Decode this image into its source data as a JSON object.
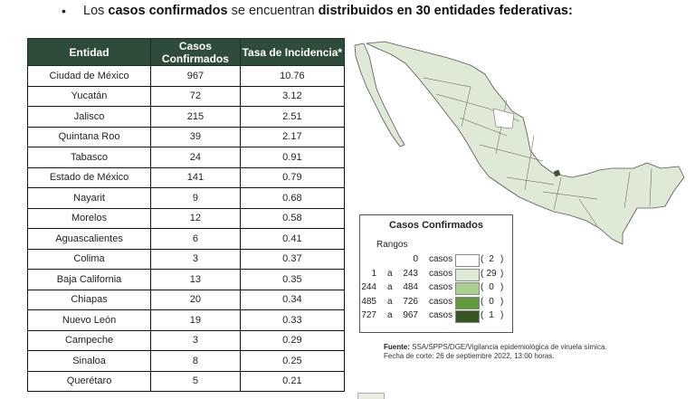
{
  "headline": {
    "bullet": "•",
    "p1": "Los ",
    "b1": "casos confirmados",
    "p2": " se encuentran ",
    "b2": "distribuidos en 30 entidades federativas:"
  },
  "table": {
    "headers": [
      "Entidad",
      "Casos Confirmados",
      "Tasa de Incidencia*"
    ],
    "rows": [
      {
        "entidad": "Ciudad de México",
        "casos": "967",
        "tasa": "10.76"
      },
      {
        "entidad": "Yucatán",
        "casos": "72",
        "tasa": "3.12"
      },
      {
        "entidad": "Jalisco",
        "casos": "215",
        "tasa": "2.51"
      },
      {
        "entidad": "Quintana Roo",
        "casos": "39",
        "tasa": "2.17"
      },
      {
        "entidad": "Tabasco",
        "casos": "24",
        "tasa": "0.91"
      },
      {
        "entidad": "Estado de México",
        "casos": "141",
        "tasa": "0.79"
      },
      {
        "entidad": "Nayarit",
        "casos": "9",
        "tasa": "0.68"
      },
      {
        "entidad": "Morelos",
        "casos": "12",
        "tasa": "0.58"
      },
      {
        "entidad": "Aguascalientes",
        "casos": "6",
        "tasa": "0.41"
      },
      {
        "entidad": "Colima",
        "casos": "3",
        "tasa": "0.37"
      },
      {
        "entidad": "Baja California",
        "casos": "13",
        "tasa": "0.35"
      },
      {
        "entidad": "Chiapas",
        "casos": "20",
        "tasa": "0.34"
      },
      {
        "entidad": "Nuevo León",
        "casos": "19",
        "tasa": "0.33"
      },
      {
        "entidad": "Campeche",
        "casos": "3",
        "tasa": "0.29"
      },
      {
        "entidad": "Sinaloa",
        "casos": "8",
        "tasa": "0.25"
      },
      {
        "entidad": "Querétaro",
        "casos": "5",
        "tasa": "0.21"
      }
    ]
  },
  "legend": {
    "title": "Casos Confirmados",
    "subtitle": "Rangos",
    "rows": [
      {
        "lo": "",
        "a": "",
        "hi": "0",
        "word": "casos",
        "color": "#ffffff",
        "count": "2"
      },
      {
        "lo": "1",
        "a": "a",
        "hi": "243",
        "word": "casos",
        "color": "#dfead6",
        "count": "29"
      },
      {
        "lo": "244",
        "a": "a",
        "hi": "484",
        "word": "casos",
        "color": "#a9d08e",
        "count": "0"
      },
      {
        "lo": "485",
        "a": "a",
        "hi": "726",
        "word": "casos",
        "color": "#5f9a3c",
        "count": "0"
      },
      {
        "lo": "727",
        "a": "a",
        "hi": "967",
        "word": "casos",
        "color": "#375623",
        "count": "1"
      }
    ]
  },
  "source": {
    "label": "Fuente:",
    "text": " SSA/SPPS/DGE/Vigilancia epidemiológica de viruela símica.",
    "line2": "Fecha de corte: 26 de septiembre 2022, 13:00 horas."
  },
  "map": {
    "base_color": "#dfead6",
    "highlight_color": "#375623",
    "white_color": "#ffffff"
  }
}
